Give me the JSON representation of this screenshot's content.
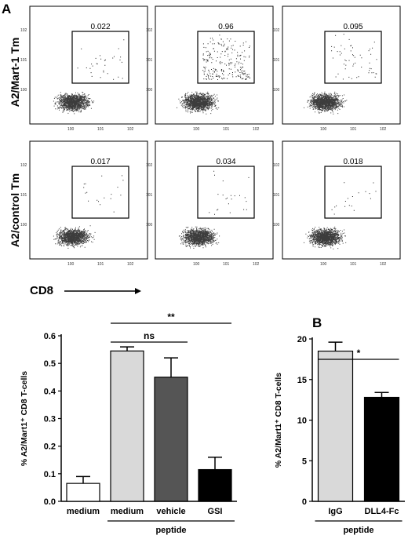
{
  "panel_a_letter": "A",
  "panel_b_letter": "B",
  "flow": {
    "row_labels": [
      "A2/Mart-1 Tm",
      "A2/control Tm"
    ],
    "x_label": "CD8",
    "gate_values": [
      [
        "0.022",
        "0.96",
        "0.095"
      ],
      [
        "0.017",
        "0.034",
        "0.018"
      ]
    ],
    "axis_tick_labels": [
      "10",
      "0",
      "1",
      "2",
      "3"
    ]
  },
  "chart_data": [
    {
      "type": "bar",
      "categories": [
        "medium",
        "medium",
        "vehicle",
        "GSI"
      ],
      "values": [
        0.065,
        0.545,
        0.45,
        0.115
      ],
      "errors": [
        0.025,
        0.015,
        0.07,
        0.045
      ],
      "colors": [
        "#ffffff",
        "#d9d9d9",
        "#555555",
        "#000000"
      ],
      "ylabel": "% A2/Mart1⁺ CD8 T-cells",
      "ylim": [
        0,
        0.6
      ],
      "yticks": [
        "0.0",
        "0.1",
        "0.2",
        "0.3",
        "0.4",
        "0.5",
        "0.6"
      ],
      "group_label": "peptide",
      "group_indices": [
        1,
        3
      ],
      "significance": [
        {
          "from": 1,
          "to": 2,
          "label": "ns"
        },
        {
          "from": 1,
          "to": 3,
          "label": "**"
        }
      ]
    },
    {
      "type": "bar",
      "categories": [
        "IgG",
        "DLL4-Fc"
      ],
      "values": [
        18.5,
        12.8
      ],
      "errors": [
        1.1,
        0.6
      ],
      "colors": [
        "#d9d9d9",
        "#000000"
      ],
      "ylabel": "% A2/Mart1⁺ CD8 T-cells",
      "ylim": [
        0,
        20
      ],
      "yticks": [
        "0",
        "5",
        "10",
        "15",
        "20"
      ],
      "group_label": "peptide",
      "group_indices": [
        0,
        1
      ],
      "significance": [
        {
          "from": 0,
          "to": 1,
          "label": "*"
        }
      ]
    }
  ]
}
